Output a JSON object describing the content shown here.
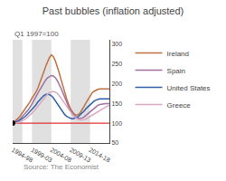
{
  "chart_data": {
    "type": "line",
    "title": "Past bubbles (inflation adjusted)",
    "subtitle": "Q1 1997=100",
    "annotations": [
      "Source: The Economist"
    ],
    "x": [
      0,
      0.5,
      1,
      1.5,
      2,
      2.5,
      3,
      3.5,
      4,
      4.5,
      5,
      5.5,
      6,
      6.5,
      7,
      7.5,
      8,
      8.5,
      9,
      9.5,
      10,
      10.5,
      11,
      11.5,
      12,
      12.5,
      13,
      13.5,
      14,
      14.5,
      15,
      15.5,
      16,
      16.5,
      17,
      17.5,
      18,
      18.5,
      19,
      19.5,
      20,
      20.5,
      21,
      21.5,
      22,
      22.5,
      23,
      23.5,
      24,
      24.5,
      25
    ],
    "series": [
      {
        "name": "Ireland",
        "color": "#c07040",
        "values": [
          100,
          104,
          108,
          113,
          119,
          126,
          133,
          139,
          146,
          154,
          163,
          170,
          178,
          188,
          200,
          214,
          228,
          242,
          255,
          265,
          272,
          268,
          258,
          244,
          228,
          210,
          192,
          175,
          160,
          147,
          135,
          128,
          122,
          120,
          122,
          127,
          134,
          143,
          152,
          161,
          170,
          176,
          180,
          183,
          185,
          186,
          186,
          186,
          186,
          186,
          186
        ]
      },
      {
        "name": "Spain",
        "color": "#a070a0",
        "values": [
          100,
          102,
          104,
          107,
          111,
          116,
          121,
          127,
          133,
          140,
          148,
          156,
          165,
          175,
          184,
          193,
          201,
          208,
          214,
          218,
          220,
          219,
          215,
          208,
          199,
          188,
          176,
          163,
          151,
          140,
          131,
          124,
          118,
          114,
          112,
          112,
          113,
          116,
          120,
          124,
          129,
          133,
          138,
          142,
          145,
          147,
          148,
          149,
          149,
          149,
          149
        ]
      },
      {
        "name": "United States",
        "color": "#3060a8",
        "values": [
          100,
          101,
          103,
          105,
          108,
          111,
          115,
          119,
          124,
          129,
          135,
          140,
          146,
          153,
          159,
          164,
          169,
          172,
          173,
          172,
          169,
          164,
          157,
          149,
          141,
          134,
          127,
          121,
          117,
          114,
          112,
          111,
          112,
          114,
          117,
          121,
          126,
          131,
          137,
          142,
          147,
          151,
          155,
          158,
          160,
          161,
          161,
          161,
          161,
          161,
          161
        ]
      },
      {
        "name": "Greece",
        "color": "#d8a8c0",
        "values": [
          100,
          100,
          101,
          102,
          104,
          106,
          109,
          112,
          116,
          120,
          125,
          130,
          136,
          142,
          149,
          156,
          162,
          168,
          173,
          177,
          179,
          180,
          178,
          175,
          170,
          163,
          156,
          148,
          140,
          133,
          127,
          121,
          116,
          112,
          109,
          108,
          108,
          109,
          111,
          114,
          117,
          120,
          124,
          127,
          130,
          133,
          136,
          139,
          141,
          143,
          144
        ]
      }
    ],
    "xlim": [
      0,
      25
    ],
    "xticks": [
      {
        "value": 0,
        "label": "1994-98"
      },
      {
        "value": 5,
        "label": "1999-03"
      },
      {
        "value": 10,
        "label": "2004-08"
      },
      {
        "value": 15,
        "label": "2009-13"
      },
      {
        "value": 20,
        "label": "2014-18"
      }
    ],
    "ylim": [
      50,
      310
    ],
    "yticks": [
      50,
      100,
      150,
      200,
      250,
      300
    ],
    "shaded_regions": {
      "color": "#e0e0e0",
      "ranges": [
        [
          0,
          2.5
        ],
        [
          5,
          10
        ],
        [
          15,
          20
        ]
      ]
    },
    "baseline": {
      "y": 100,
      "color": "#e03030"
    },
    "dot": {
      "x": 0,
      "y": 100,
      "color": "#000000"
    },
    "grid": false,
    "legend": "right"
  }
}
